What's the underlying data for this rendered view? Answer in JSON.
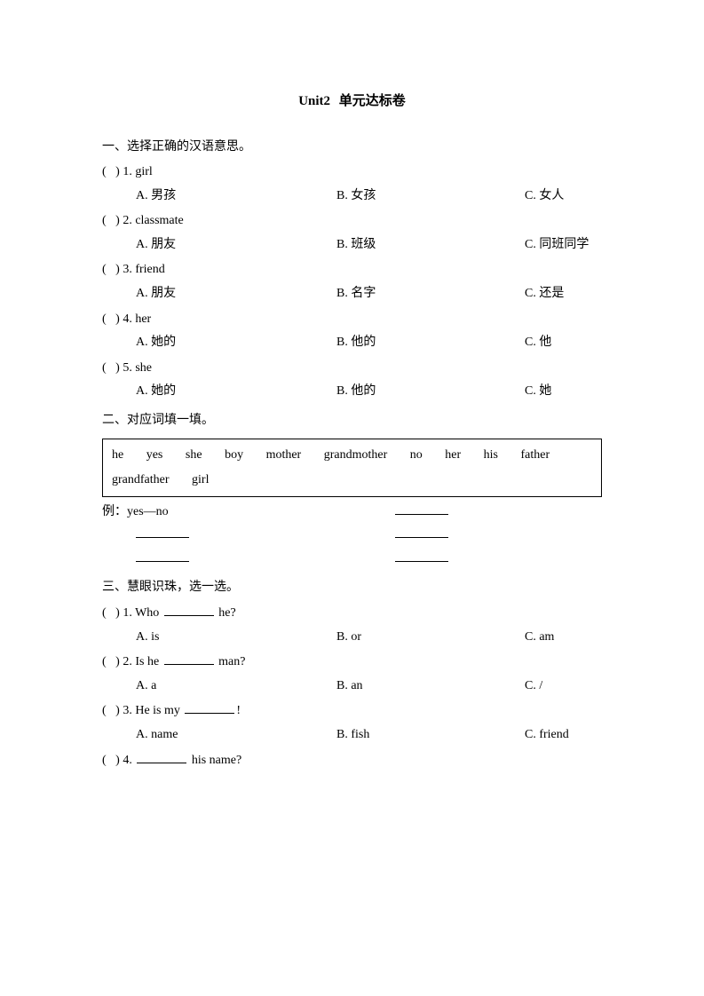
{
  "title": {
    "prefix": "Unit2",
    "text": "单元达标卷"
  },
  "section1": {
    "heading": "一、选择正确的汉语意思。",
    "items": [
      {
        "num": "1",
        "word": "girl",
        "a": "A. 男孩",
        "b": "B. 女孩",
        "c": "C. 女人"
      },
      {
        "num": "2",
        "word": "classmate",
        "a": "A. 朋友",
        "b": "B. 班级",
        "c": "C. 同班同学"
      },
      {
        "num": "3",
        "word": "friend",
        "a": "A. 朋友",
        "b": "B. 名字",
        "c": "C. 还是"
      },
      {
        "num": "4",
        "word": "her",
        "a": "A. 她的",
        "b": "B. 他的",
        "c": "C. 他"
      },
      {
        "num": "5",
        "word": "she",
        "a": "A. 她的",
        "b": "B. 他的",
        "c": "C. 她"
      }
    ]
  },
  "section2": {
    "heading": "二、对应词填一填。",
    "words": [
      "he",
      "yes",
      "she",
      "boy",
      "mother",
      "grandmother",
      "no",
      "her",
      "his",
      "father",
      "grandfather",
      "girl"
    ],
    "example_label": "例：",
    "example_pair": "yes—no"
  },
  "section3": {
    "heading": "三、慧眼识珠，选一选。",
    "items": [
      {
        "num": "1",
        "pre": "Who ",
        "post": " he?",
        "a": "A. is",
        "b": "B. or",
        "c": "C. am"
      },
      {
        "num": "2",
        "pre": "Is he ",
        "post": " man?",
        "a": "A. a",
        "b": "B. an",
        "c": "C. /"
      },
      {
        "num": "3",
        "pre": "He is my ",
        "post": "!",
        "a": "A. name",
        "b": "B. fish",
        "c": "C. friend"
      },
      {
        "num": "4",
        "pre": "",
        "post": " his name?",
        "a": "",
        "b": "",
        "c": ""
      }
    ]
  }
}
